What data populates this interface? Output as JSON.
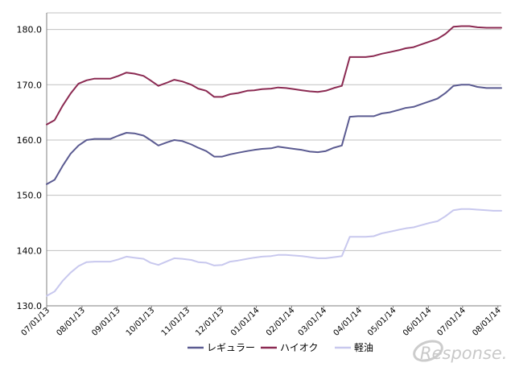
{
  "chart_data": {
    "type": "line",
    "title": "",
    "xlabel": "",
    "ylabel": "",
    "ylim": [
      130,
      183
    ],
    "yticks": [
      "130.0",
      "140.0",
      "150.0",
      "160.0",
      "170.0",
      "180.0"
    ],
    "grid": "horizontal",
    "legend": "bottom",
    "x": [
      "07/01/13",
      "07/08/13",
      "07/15/13",
      "07/22/13",
      "07/29/13",
      "08/05/13",
      "08/12/13",
      "08/19/13",
      "08/26/13",
      "09/02/13",
      "09/09/13",
      "09/16/13",
      "09/24/13",
      "09/30/13",
      "10/07/13",
      "10/15/13",
      "10/21/13",
      "10/28/13",
      "11/05/13",
      "11/11/13",
      "11/18/13",
      "11/25/13",
      "12/02/13",
      "12/09/13",
      "12/16/13",
      "12/24/13",
      "12/30/13",
      "01/06/14",
      "01/14/14",
      "01/20/14",
      "01/27/14",
      "02/03/14",
      "02/10/14",
      "02/17/14",
      "02/24/14",
      "03/03/14",
      "03/10/14",
      "03/17/14",
      "03/24/14",
      "03/31/14",
      "04/07/14",
      "04/14/14",
      "04/21/14",
      "04/28/14",
      "05/07/14",
      "05/12/14",
      "05/19/14",
      "05/26/14",
      "06/02/14",
      "06/09/14",
      "06/16/14",
      "06/23/14",
      "06/30/14",
      "07/07/14",
      "07/14/14",
      "07/22/14",
      "07/28/14",
      "08/04/14"
    ],
    "x_tick_labels": [
      "07/01/13",
      "08/01/13",
      "09/01/13",
      "10/01/13",
      "11/01/13",
      "12/01/13",
      "01/01/14",
      "02/01/14",
      "03/01/14",
      "04/01/14",
      "05/01/14",
      "06/01/14",
      "07/01/14",
      "08/01/14"
    ],
    "series": [
      {
        "name": "レギュラー",
        "color": "#5b5b91",
        "values": [
          152.0,
          152.8,
          155.3,
          157.5,
          159.0,
          160.0,
          160.2,
          160.2,
          160.2,
          160.8,
          161.3,
          161.2,
          160.8,
          160.0,
          159.0,
          159.6,
          160.0,
          159.8,
          159.2,
          158.6,
          158.0,
          157.0,
          157.0,
          157.4,
          157.7,
          158.0,
          158.2,
          158.4,
          158.5,
          158.8,
          158.6,
          158.4,
          158.2,
          157.9,
          157.8,
          158.0,
          158.6,
          159.0,
          164.2,
          164.3,
          164.3,
          164.3,
          164.8,
          165.0,
          165.5,
          165.8,
          166.0,
          166.5,
          167.0,
          167.5,
          168.5,
          169.8,
          170.0,
          170.0,
          169.6,
          169.4,
          169.4,
          169.4
        ]
      },
      {
        "name": "ハイオク",
        "color": "#8b2a52",
        "values": [
          162.8,
          163.6,
          166.2,
          168.4,
          170.2,
          170.8,
          171.1,
          171.1,
          171.1,
          171.6,
          172.2,
          172.0,
          171.6,
          170.8,
          169.8,
          170.4,
          170.9,
          170.6,
          170.0,
          169.3,
          168.9,
          167.8,
          167.8,
          168.3,
          168.5,
          168.9,
          169.0,
          169.2,
          169.3,
          169.5,
          169.4,
          169.2,
          169.0,
          168.8,
          168.7,
          168.9,
          169.4,
          169.8,
          175.0,
          175.0,
          175.0,
          175.2,
          175.6,
          175.9,
          176.3,
          176.6,
          176.8,
          177.3,
          177.8,
          178.3,
          179.2,
          180.5,
          180.6,
          180.6,
          180.4,
          180.3,
          180.3,
          180.3
        ]
      },
      {
        "name": "軽油",
        "color": "#c8c8ee",
        "values": [
          131.8,
          132.6,
          134.5,
          136.0,
          137.2,
          137.9,
          138.0,
          138.0,
          138.0,
          138.4,
          138.9,
          138.7,
          138.5,
          137.8,
          137.4,
          138.1,
          138.6,
          138.5,
          138.3,
          137.9,
          137.8,
          137.3,
          137.4,
          138.0,
          138.2,
          138.5,
          138.7,
          138.9,
          139.0,
          139.2,
          139.2,
          139.1,
          139.0,
          138.8,
          138.6,
          138.6,
          138.8,
          139.0,
          142.5,
          142.5,
          142.5,
          142.6,
          143.1,
          143.4,
          143.8,
          144.0,
          144.2,
          144.6,
          145.0,
          145.3,
          146.2,
          147.3,
          147.5,
          147.5,
          147.4,
          147.3,
          147.2,
          147.2
        ]
      }
    ]
  },
  "watermark": {
    "text": "Response.",
    "color": "#c9c9c9"
  },
  "colors": {
    "gridline": "#c0c0c0",
    "axis": "#808080"
  }
}
